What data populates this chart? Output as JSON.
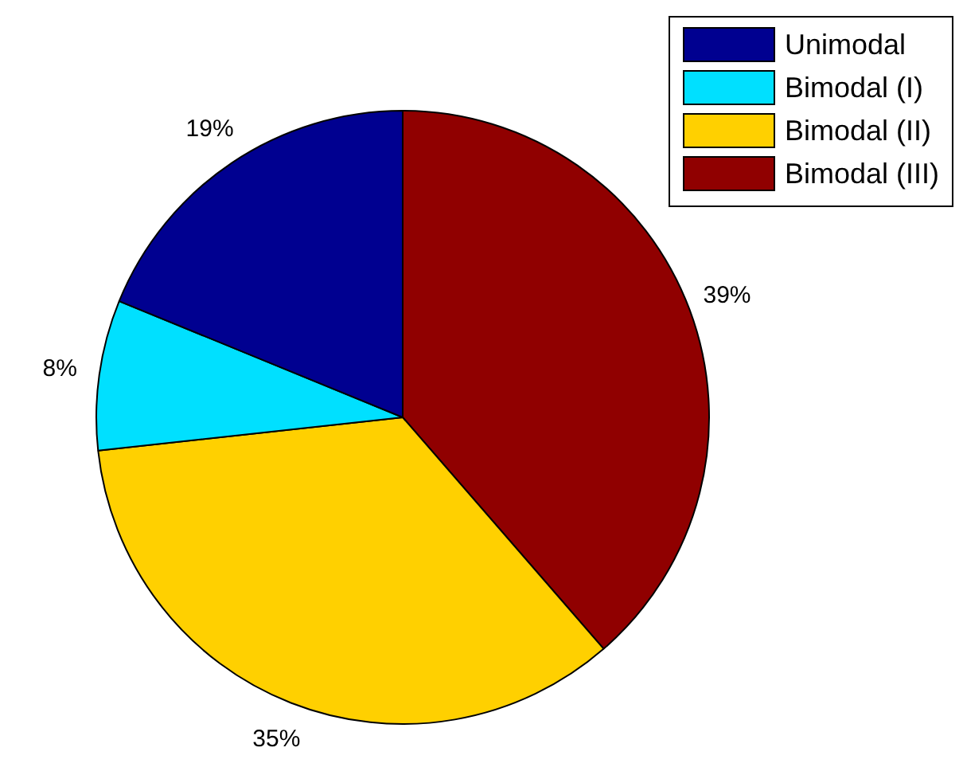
{
  "chart_data": {
    "type": "pie",
    "categories": [
      "Unimodal",
      "Bimodal (I)",
      "Bimodal (II)",
      "Bimodal (III)"
    ],
    "values": [
      19,
      8,
      35,
      39
    ],
    "colors": [
      "#000090",
      "#00e0ff",
      "#ffd000",
      "#900000"
    ],
    "value_labels": [
      "19%",
      "8%",
      "35%",
      "39%"
    ],
    "legend": "top right"
  }
}
